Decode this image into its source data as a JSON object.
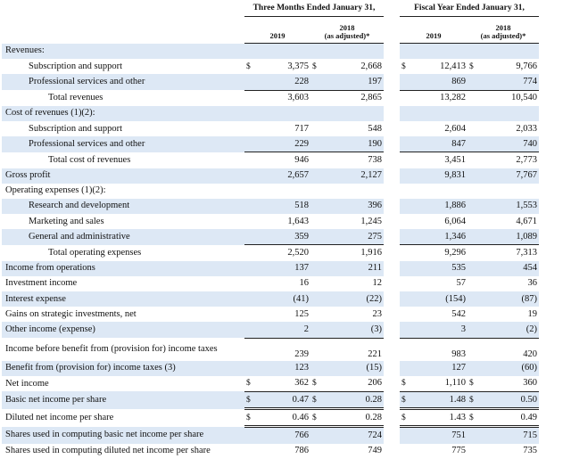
{
  "header": {
    "group1": "Three Months Ended January 31,",
    "group2": "Fiscal Year Ended January 31,",
    "col_2019": "2019",
    "col_2018_line1": "2018",
    "col_2018_line2": "(as adjusted)*",
    "col_2019_b": "2019",
    "col_2018b_line1": "2018",
    "col_2018b_line2": "(as adjusted)*"
  },
  "currency": "$",
  "rows": [
    {
      "label": "Revenues:",
      "indent": 0,
      "v": [
        "",
        "",
        "",
        ""
      ]
    },
    {
      "label": "Subscription and support",
      "indent": 1,
      "v": [
        "3,375",
        "2,668",
        "12,413",
        "9,766"
      ],
      "cur": true
    },
    {
      "label": "Professional services and other",
      "indent": 1,
      "v": [
        "228",
        "197",
        "869",
        "774"
      ]
    },
    {
      "label": "Total revenues",
      "indent": 2,
      "v": [
        "3,603",
        "2,865",
        "13,282",
        "10,540"
      ]
    },
    {
      "label": "Cost of revenues (1)(2):",
      "indent": 0,
      "v": [
        "",
        "",
        "",
        ""
      ]
    },
    {
      "label": "Subscription and support",
      "indent": 1,
      "v": [
        "717",
        "548",
        "2,604",
        "2,033"
      ]
    },
    {
      "label": "Professional services and other",
      "indent": 1,
      "v": [
        "229",
        "190",
        "847",
        "740"
      ]
    },
    {
      "label": "Total cost of revenues",
      "indent": 2,
      "v": [
        "946",
        "738",
        "3,451",
        "2,773"
      ]
    },
    {
      "label": "Gross profit",
      "indent": 0,
      "v": [
        "2,657",
        "2,127",
        "9,831",
        "7,767"
      ]
    },
    {
      "label": "Operating expenses (1)(2):",
      "indent": 0,
      "v": [
        "",
        "",
        "",
        ""
      ]
    },
    {
      "label": "Research and development",
      "indent": 1,
      "v": [
        "518",
        "396",
        "1,886",
        "1,553"
      ]
    },
    {
      "label": "Marketing and sales",
      "indent": 1,
      "v": [
        "1,643",
        "1,245",
        "6,064",
        "4,671"
      ]
    },
    {
      "label": "General and administrative",
      "indent": 1,
      "v": [
        "359",
        "275",
        "1,346",
        "1,089"
      ]
    },
    {
      "label": "Total operating expenses",
      "indent": 2,
      "v": [
        "2,520",
        "1,916",
        "9,296",
        "7,313"
      ]
    },
    {
      "label": "Income from operations",
      "indent": 0,
      "v": [
        "137",
        "211",
        "535",
        "454"
      ]
    },
    {
      "label": "Investment income",
      "indent": 0,
      "v": [
        "16",
        "12",
        "57",
        "36"
      ]
    },
    {
      "label": "Interest expense",
      "indent": 0,
      "v": [
        "(41)",
        "(22)",
        "(154)",
        "(87)"
      ]
    },
    {
      "label": "Gains on strategic investments, net",
      "indent": 0,
      "v": [
        "125",
        "23",
        "542",
        "19"
      ]
    },
    {
      "label": "Other income (expense)",
      "indent": 0,
      "v": [
        "2",
        "(3)",
        "3",
        "(2)"
      ]
    },
    {
      "label": "Income before benefit from (provision for) income taxes",
      "indent": 0,
      "v": [
        "239",
        "221",
        "983",
        "420"
      ]
    },
    {
      "label": "Benefit from (provision for) income taxes (3)",
      "indent": 0,
      "v": [
        "123",
        "(15)",
        "127",
        "(60)"
      ]
    },
    {
      "label": "Net income",
      "indent": 0,
      "v": [
        "362",
        "206",
        "1,110",
        "360"
      ],
      "cur": true
    },
    {
      "label": "Basic net income per share",
      "indent": 0,
      "v": [
        "0.47",
        "0.28",
        "1.48",
        "0.50"
      ],
      "cur": true
    },
    {
      "label": "Diluted net income per share",
      "indent": 0,
      "v": [
        "0.46",
        "0.28",
        "1.43",
        "0.49"
      ],
      "cur": true
    },
    {
      "label": "Shares used in computing basic net income per share",
      "indent": 0,
      "v": [
        "766",
        "724",
        "751",
        "715"
      ]
    },
    {
      "label": "Shares used in computing diluted net income per share",
      "indent": 0,
      "v": [
        "786",
        "749",
        "775",
        "735"
      ]
    }
  ]
}
